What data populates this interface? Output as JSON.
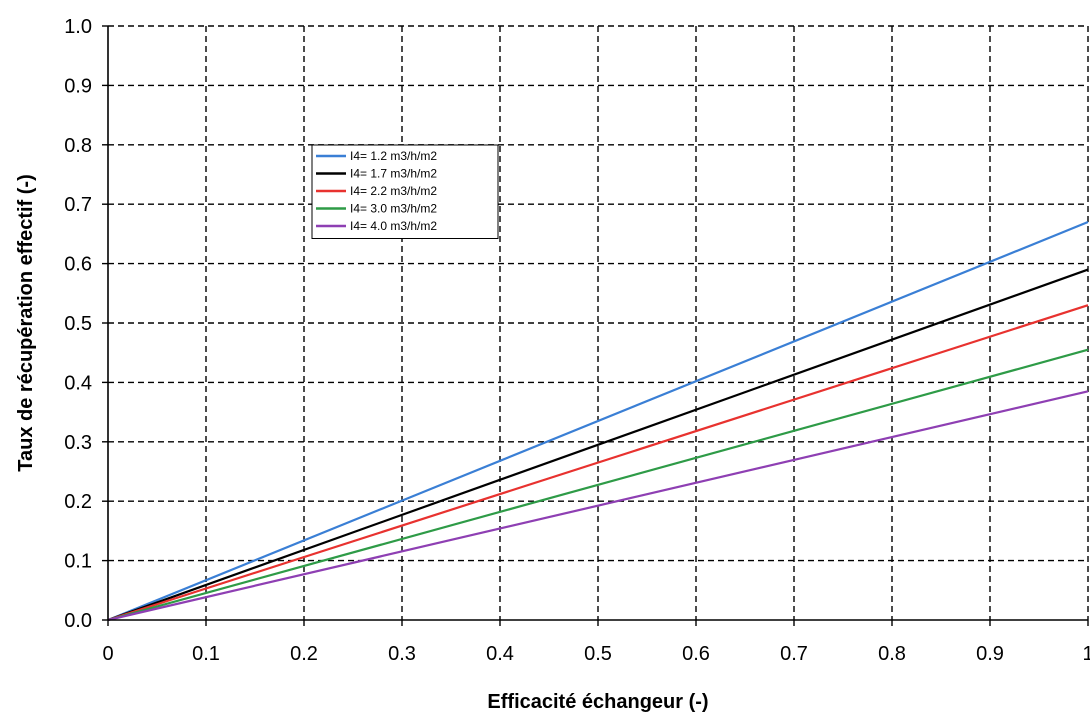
{
  "chart_data": {
    "type": "line",
    "title": "",
    "xlabel": "Efficacité échangeur (-)",
    "ylabel": "Taux de récupération effectif (-)",
    "xlim": [
      0,
      1
    ],
    "ylim": [
      0,
      1
    ],
    "xticks": [
      "0",
      "0.1",
      "0.2",
      "0.3",
      "0.4",
      "0.5",
      "0.6",
      "0.7",
      "0.8",
      "0.9",
      "1"
    ],
    "yticks": [
      "0.0",
      "0.1",
      "0.2",
      "0.3",
      "0.4",
      "0.5",
      "0.6",
      "0.7",
      "0.8",
      "0.9",
      "1.0"
    ],
    "grid": true,
    "grid_style": "dashed",
    "legend_position": "upper-left",
    "series": [
      {
        "name": "I4= 1.2 m3/h/m2",
        "color": "#3a7fd5",
        "x": [
          0,
          1
        ],
        "y": [
          0,
          0.67
        ]
      },
      {
        "name": "I4= 1.7 m3/h/m2",
        "color": "#000000",
        "x": [
          0,
          1
        ],
        "y": [
          0,
          0.59
        ]
      },
      {
        "name": "I4= 2.2 m3/h/m2",
        "color": "#e8322f",
        "x": [
          0,
          1
        ],
        "y": [
          0,
          0.53
        ]
      },
      {
        "name": "I4= 3.0 m3/h/m2",
        "color": "#2e9b47",
        "x": [
          0,
          1
        ],
        "y": [
          0,
          0.455
        ]
      },
      {
        "name": "I4= 4.0 m3/h/m2",
        "color": "#8e3fb3",
        "x": [
          0,
          1
        ],
        "y": [
          0,
          0.385
        ]
      }
    ]
  }
}
